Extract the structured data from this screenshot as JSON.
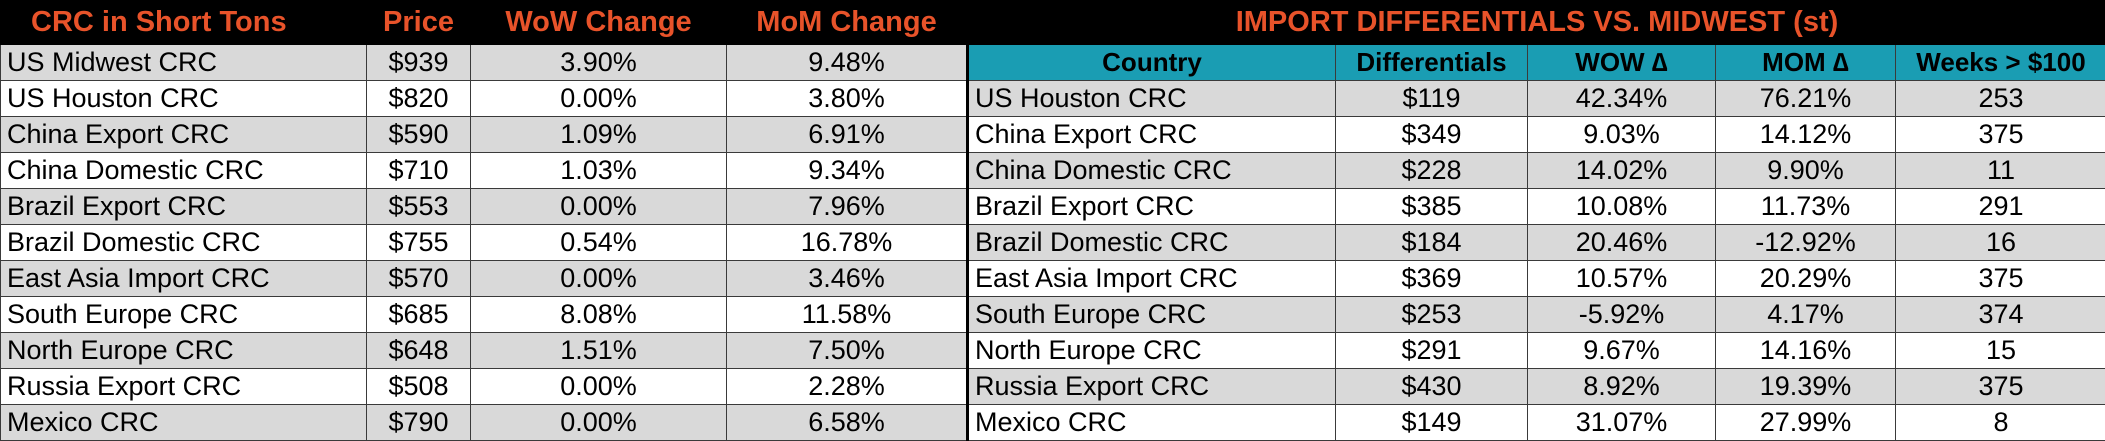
{
  "left_table": {
    "headers": [
      "CRC in Short Tons",
      "Price",
      "WoW Change",
      "MoM Change"
    ],
    "rows": [
      {
        "name": "US Midwest CRC",
        "price": "$939",
        "wow": "3.90%",
        "mom": "9.48%"
      },
      {
        "name": "US Houston CRC",
        "price": "$820",
        "wow": "0.00%",
        "mom": "3.80%"
      },
      {
        "name": "China Export CRC",
        "price": "$590",
        "wow": "1.09%",
        "mom": "6.91%"
      },
      {
        "name": "China Domestic CRC",
        "price": "$710",
        "wow": "1.03%",
        "mom": "9.34%"
      },
      {
        "name": "Brazil Export CRC",
        "price": "$553",
        "wow": "0.00%",
        "mom": "7.96%"
      },
      {
        "name": "Brazil Domestic CRC",
        "price": "$755",
        "wow": "0.54%",
        "mom": "16.78%"
      },
      {
        "name": "East Asia Import CRC",
        "price": "$570",
        "wow": "0.00%",
        "mom": "3.46%"
      },
      {
        "name": "South Europe CRC",
        "price": "$685",
        "wow": "8.08%",
        "mom": "11.58%"
      },
      {
        "name": "North Europe CRC",
        "price": "$648",
        "wow": "1.51%",
        "mom": "7.50%"
      },
      {
        "name": "Russia Export CRC",
        "price": "$508",
        "wow": "0.00%",
        "mom": "2.28%"
      },
      {
        "name": "Mexico CRC",
        "price": "$790",
        "wow": "0.00%",
        "mom": "6.58%"
      }
    ]
  },
  "right_table": {
    "title": "IMPORT DIFFERENTIALS VS. MIDWEST (st)",
    "headers": [
      "Country",
      "Differentials",
      "WOW ∆",
      "MOM ∆",
      "Weeks > $100"
    ],
    "rows": [
      {
        "name": "US Houston CRC",
        "diff": "$119",
        "wow": "42.34%",
        "mom": "76.21%",
        "weeks": "253"
      },
      {
        "name": "China Export CRC",
        "diff": "$349",
        "wow": "9.03%",
        "mom": "14.12%",
        "weeks": "375"
      },
      {
        "name": "China Domestic CRC",
        "diff": "$228",
        "wow": "14.02%",
        "mom": "9.90%",
        "weeks": "11"
      },
      {
        "name": "Brazil Export CRC",
        "diff": "$385",
        "wow": "10.08%",
        "mom": "11.73%",
        "weeks": "291"
      },
      {
        "name": "Brazil Domestic CRC",
        "diff": "$184",
        "wow": "20.46%",
        "mom": "-12.92%",
        "weeks": "16"
      },
      {
        "name": "East Asia Import CRC",
        "diff": "$369",
        "wow": "10.57%",
        "mom": "20.29%",
        "weeks": "375"
      },
      {
        "name": "South Europe CRC",
        "diff": "$253",
        "wow": "-5.92%",
        "mom": "4.17%",
        "weeks": "374"
      },
      {
        "name": "North Europe CRC",
        "diff": "$291",
        "wow": "9.67%",
        "mom": "14.16%",
        "weeks": "15"
      },
      {
        "name": "Russia Export CRC",
        "diff": "$430",
        "wow": "8.92%",
        "mom": "19.39%",
        "weeks": "375"
      },
      {
        "name": "Mexico CRC",
        "diff": "$149",
        "wow": "31.07%",
        "mom": "27.99%",
        "weeks": "8"
      }
    ]
  },
  "colors": {
    "header_bg": "#000000",
    "header_text": "#e8532a",
    "teal_header": "#1a9db3",
    "row_gray": "#d9d9d9",
    "row_white": "#ffffff"
  }
}
